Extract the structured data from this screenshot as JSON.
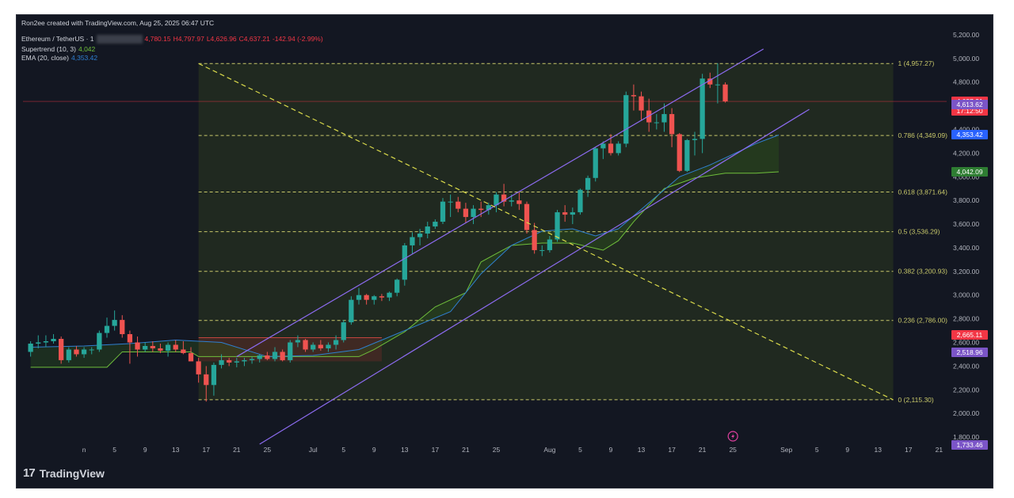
{
  "header": {
    "credit": "Ron2ee created with TradingView.com, Aug 25, 2025 06:47 UTC",
    "symbol": "Ethereum / TetherUS · 1",
    "open": "4,780.15",
    "high": "H4,797.97",
    "low": "L4,626.96",
    "close": "C4,637.21",
    "change": "-142.94 (-2.99%)",
    "supertrend_label": "Supertrend (10, 3)",
    "supertrend_value": "4,042",
    "ema_label": "EMA (20, close)",
    "ema_value": "4,353.42"
  },
  "brand": {
    "name": "TradingView"
  },
  "colors": {
    "bg": "#131722",
    "up": "#26a69a",
    "down": "#ef5350",
    "channel": "#8c6bf0",
    "fib": "#c8c86a",
    "ema": "#2f7fd1",
    "supertrend": "#6fbf3b"
  },
  "chart_data": {
    "type": "candlestick",
    "ylim": [
      1700,
      5300
    ],
    "y_ticks": [
      1800,
      2000,
      2200,
      2400,
      2600,
      2800,
      3000,
      3200,
      3400,
      3600,
      3800,
      4000,
      4200,
      4400,
      4600,
      4800,
      5000,
      5200
    ],
    "y_tick_labels": [
      "1,800.00",
      "2,000.00",
      "2,200.00",
      "2,400.00",
      "2,600.00",
      "2,800.00",
      "3,000.00",
      "3,200.00",
      "3,400.00",
      "3,600.00",
      "3,800.00",
      "4,000.00",
      "4,200.00",
      "4,400.00",
      "4,600.00",
      "4,800.00",
      "5,000.00",
      "5,200.00"
    ],
    "x_ticks": [
      {
        "day": 0,
        "label": "n"
      },
      {
        "day": 4,
        "label": "5"
      },
      {
        "day": 8,
        "label": "9"
      },
      {
        "day": 12,
        "label": "13"
      },
      {
        "day": 16,
        "label": "17"
      },
      {
        "day": 20,
        "label": "21"
      },
      {
        "day": 24,
        "label": "25"
      },
      {
        "day": 30,
        "label": "Jul"
      },
      {
        "day": 34,
        "label": "5"
      },
      {
        "day": 38,
        "label": "9"
      },
      {
        "day": 42,
        "label": "13"
      },
      {
        "day": 46,
        "label": "17"
      },
      {
        "day": 50,
        "label": "21"
      },
      {
        "day": 54,
        "label": "25"
      },
      {
        "day": 61,
        "label": "Aug"
      },
      {
        "day": 65,
        "label": "5"
      },
      {
        "day": 69,
        "label": "9"
      },
      {
        "day": 73,
        "label": "13"
      },
      {
        "day": 77,
        "label": "17"
      },
      {
        "day": 81,
        "label": "21"
      },
      {
        "day": 85,
        "label": "25"
      },
      {
        "day": 92,
        "label": "Sep"
      },
      {
        "day": 96,
        "label": "5"
      },
      {
        "day": 100,
        "label": "9"
      },
      {
        "day": 104,
        "label": "13"
      },
      {
        "day": 108,
        "label": "17"
      },
      {
        "day": 112,
        "label": "21"
      }
    ],
    "candles": [
      [
        2520,
        2610,
        2480,
        2590
      ],
      [
        2590,
        2660,
        2550,
        2600
      ],
      [
        2600,
        2660,
        2560,
        2610
      ],
      [
        2610,
        2670,
        2590,
        2630
      ],
      [
        2630,
        2650,
        2420,
        2450
      ],
      [
        2450,
        2560,
        2430,
        2540
      ],
      [
        2540,
        2570,
        2480,
        2500
      ],
      [
        2500,
        2560,
        2470,
        2540
      ],
      [
        2540,
        2560,
        2500,
        2540
      ],
      [
        2540,
        2700,
        2520,
        2680
      ],
      [
        2680,
        2810,
        2640,
        2740
      ],
      [
        2740,
        2870,
        2700,
        2790
      ],
      [
        2790,
        2830,
        2640,
        2670
      ],
      [
        2670,
        2700,
        2420,
        2600
      ],
      [
        2600,
        2650,
        2480,
        2540
      ],
      [
        2540,
        2600,
        2520,
        2570
      ],
      [
        2570,
        2610,
        2520,
        2550
      ],
      [
        2550,
        2590,
        2510,
        2530
      ],
      [
        2530,
        2600,
        2480,
        2580
      ],
      [
        2580,
        2620,
        2520,
        2540
      ],
      [
        2540,
        2610,
        2500,
        2510
      ],
      [
        2510,
        2560,
        2440,
        2440
      ],
      [
        2440,
        2470,
        2260,
        2330
      ],
      [
        2330,
        2400,
        2100,
        2240
      ],
      [
        2240,
        2430,
        2150,
        2410
      ],
      [
        2410,
        2500,
        2380,
        2450
      ],
      [
        2450,
        2470,
        2400,
        2430
      ],
      [
        2430,
        2470,
        2390,
        2440
      ],
      [
        2440,
        2470,
        2400,
        2450
      ],
      [
        2450,
        2480,
        2420,
        2460
      ],
      [
        2460,
        2500,
        2430,
        2490
      ],
      [
        2490,
        2520,
        2450,
        2460
      ],
      [
        2460,
        2560,
        2440,
        2520
      ],
      [
        2520,
        2540,
        2440,
        2450
      ],
      [
        2450,
        2620,
        2430,
        2600
      ],
      [
        2600,
        2660,
        2560,
        2620
      ],
      [
        2620,
        2630,
        2520,
        2540
      ],
      [
        2540,
        2600,
        2520,
        2580
      ],
      [
        2580,
        2620,
        2530,
        2550
      ],
      [
        2550,
        2600,
        2520,
        2580
      ],
      [
        2580,
        2660,
        2540,
        2620
      ],
      [
        2620,
        2790,
        2600,
        2770
      ],
      [
        2770,
        2990,
        2750,
        2960
      ],
      [
        2960,
        3060,
        2920,
        3000
      ],
      [
        3000,
        3010,
        2920,
        2960
      ],
      [
        2960,
        3000,
        2920,
        2990
      ],
      [
        2990,
        3010,
        2950,
        2980
      ],
      [
        2980,
        3030,
        2950,
        3020
      ],
      [
        3020,
        3140,
        2990,
        3130
      ],
      [
        3130,
        3440,
        3080,
        3420
      ],
      [
        3420,
        3530,
        3350,
        3490
      ],
      [
        3490,
        3560,
        3420,
        3520
      ],
      [
        3520,
        3620,
        3480,
        3580
      ],
      [
        3580,
        3640,
        3560,
        3620
      ],
      [
        3620,
        3820,
        3600,
        3790
      ],
      [
        3790,
        3850,
        3660,
        3790
      ],
      [
        3790,
        3830,
        3700,
        3730
      ],
      [
        3730,
        3780,
        3610,
        3660
      ],
      [
        3660,
        3760,
        3600,
        3730
      ],
      [
        3730,
        3790,
        3660,
        3720
      ],
      [
        3720,
        3780,
        3680,
        3760
      ],
      [
        3760,
        3870,
        3700,
        3850
      ],
      [
        3850,
        3940,
        3750,
        3790
      ],
      [
        3790,
        3850,
        3750,
        3800
      ],
      [
        3800,
        3870,
        3720,
        3770
      ],
      [
        3770,
        3790,
        3520,
        3550
      ],
      [
        3550,
        3610,
        3350,
        3380
      ],
      [
        3380,
        3420,
        3330,
        3380
      ],
      [
        3380,
        3500,
        3360,
        3470
      ],
      [
        3470,
        3720,
        3450,
        3700
      ],
      [
        3700,
        3760,
        3620,
        3680
      ],
      [
        3680,
        3740,
        3600,
        3700
      ],
      [
        3700,
        3900,
        3680,
        3890
      ],
      [
        3890,
        4010,
        3830,
        3990
      ],
      [
        3990,
        4250,
        3960,
        4240
      ],
      [
        4240,
        4300,
        4150,
        4280
      ],
      [
        4280,
        4360,
        4180,
        4200
      ],
      [
        4200,
        4300,
        4180,
        4280
      ],
      [
        4280,
        4720,
        4250,
        4690
      ],
      [
        4690,
        4780,
        4560,
        4680
      ],
      [
        4680,
        4720,
        4480,
        4560
      ],
      [
        4560,
        4660,
        4380,
        4460
      ],
      [
        4460,
        4530,
        4400,
        4460
      ],
      [
        4460,
        4620,
        4380,
        4530
      ],
      [
        4530,
        4580,
        4250,
        4360
      ],
      [
        4360,
        4370,
        4040,
        4050
      ],
      [
        4050,
        4320,
        4040,
        4310
      ],
      [
        4310,
        4380,
        4180,
        4320
      ],
      [
        4320,
        4870,
        4200,
        4830
      ],
      [
        4830,
        4880,
        4750,
        4780
      ],
      [
        4780,
        4960,
        4620,
        4780
      ],
      [
        4780,
        4798,
        4627,
        4637
      ]
    ],
    "candle_start_day": -7,
    "ema20": [
      [
        -7,
        2560
      ],
      [
        0,
        2570
      ],
      [
        6,
        2590
      ],
      [
        12,
        2620
      ],
      [
        18,
        2600
      ],
      [
        24,
        2480
      ],
      [
        30,
        2490
      ],
      [
        36,
        2540
      ],
      [
        42,
        2700
      ],
      [
        48,
        2860
      ],
      [
        52,
        3180
      ],
      [
        56,
        3420
      ],
      [
        60,
        3540
      ],
      [
        64,
        3560
      ],
      [
        67,
        3500
      ],
      [
        70,
        3560
      ],
      [
        74,
        3780
      ],
      [
        78,
        4000
      ],
      [
        82,
        4100
      ],
      [
        86,
        4220
      ],
      [
        88,
        4280
      ],
      [
        91,
        4353
      ]
    ],
    "supertrend": [
      [
        -7,
        2390
      ],
      [
        3,
        2390
      ],
      [
        5,
        2520
      ],
      [
        14,
        2520
      ],
      [
        15,
        2480
      ],
      [
        36,
        2480
      ],
      [
        38,
        2540
      ],
      [
        42,
        2690
      ],
      [
        46,
        2900
      ],
      [
        50,
        3020
      ],
      [
        52,
        3280
      ],
      [
        56,
        3420
      ],
      [
        60,
        3440
      ],
      [
        64,
        3440
      ],
      [
        68,
        3380
      ],
      [
        70,
        3460
      ],
      [
        72,
        3620
      ],
      [
        76,
        3900
      ],
      [
        80,
        3990
      ],
      [
        84,
        4030
      ],
      [
        88,
        4030
      ],
      [
        91,
        4042
      ]
    ],
    "channel_upper": [
      [
        20,
        2480
      ],
      [
        89,
        5080
      ]
    ],
    "channel_lower": [
      [
        23,
        1740
      ],
      [
        95,
        4570
      ]
    ],
    "diagonal_dashed": [
      [
        15,
        4957
      ],
      [
        106,
        2115
      ]
    ],
    "fib_range": {
      "start_day": 15,
      "end_day": 106
    },
    "fib_levels": [
      {
        "value": 4957.27,
        "label": "1 (4,957.27)"
      },
      {
        "value": 4349.09,
        "label": "0.786 (4,349.09)"
      },
      {
        "value": 3871.64,
        "label": "0.618 (3,871.64)"
      },
      {
        "value": 3536.29,
        "label": "0.5 (3,536.29)"
      },
      {
        "value": 3200.93,
        "label": "0.382 (3,200.93)"
      },
      {
        "value": 2786.0,
        "label": "0.236 (2,786.00)"
      },
      {
        "value": 2115.3,
        "label": "0 (2,115.30)"
      }
    ],
    "red_box": {
      "start_day": 15,
      "end_day": 39,
      "low": 2440,
      "high": 2640
    },
    "price_tags": [
      {
        "value": 4637.21,
        "label": "4,637.21",
        "sub": "17:12:50",
        "color": "#f23645"
      },
      {
        "value": 4613.62,
        "label": "4,613.62",
        "color": "#7b55c7"
      },
      {
        "value": 4353.42,
        "label": "4,353.42",
        "color": "#2962ff"
      },
      {
        "value": 4042.09,
        "label": "4,042.09",
        "color": "#2e7d32"
      },
      {
        "value": 2665.11,
        "label": "2,665.11",
        "color": "#f23645"
      },
      {
        "value": 2518.96,
        "label": "2,518.96",
        "color": "#7b55c7"
      },
      {
        "value": 1733.46,
        "label": "1,733.46",
        "color": "#7b55c7"
      }
    ]
  }
}
